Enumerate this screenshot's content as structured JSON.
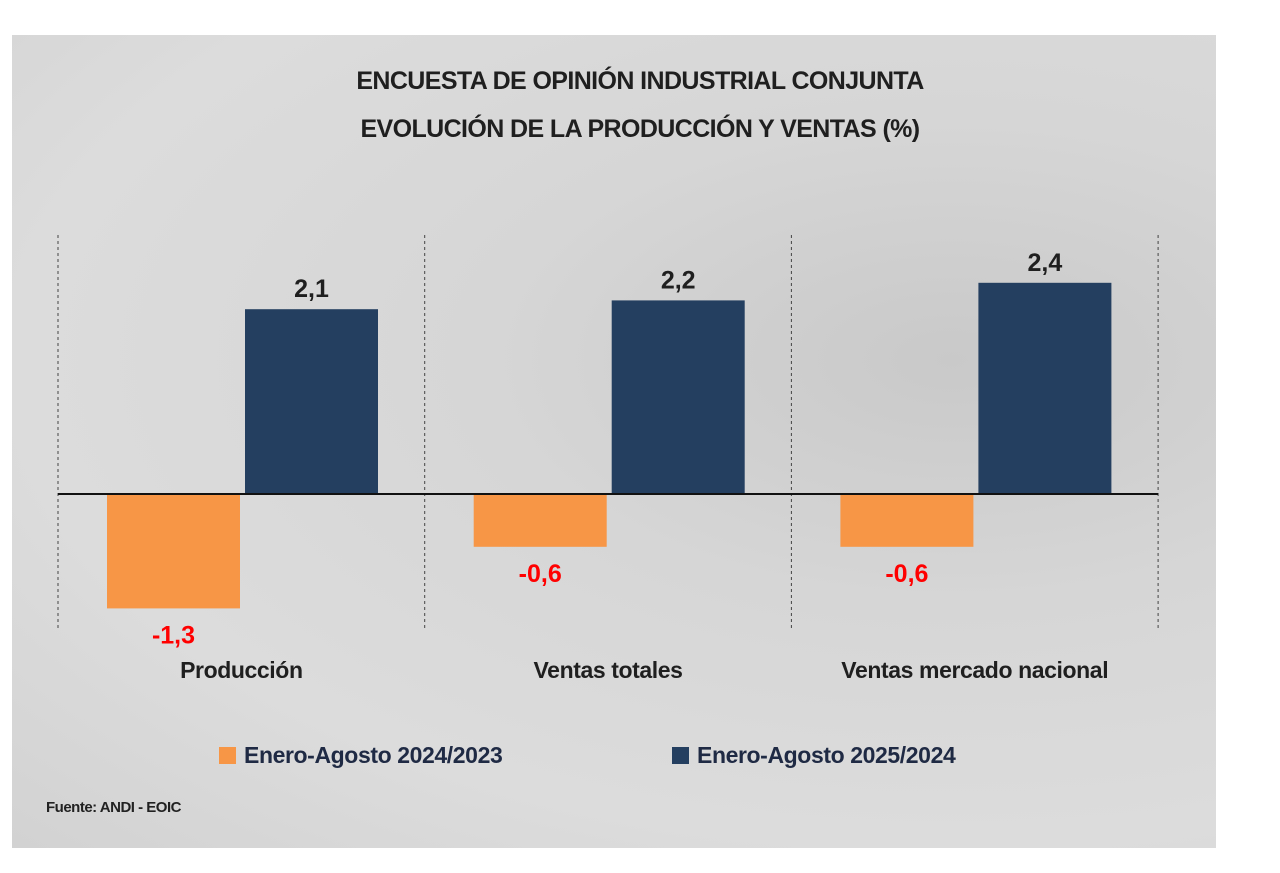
{
  "chart_data": {
    "type": "bar",
    "title": [
      "ENCUESTA DE OPINIÓN INDUSTRIAL CONJUNTA",
      "EVOLUCIÓN DE LA PRODUCCIÓN Y VENTAS (%)"
    ],
    "categories": [
      "Producción",
      "Ventas totales",
      "Ventas mercado nacional"
    ],
    "series": [
      {
        "name": "Enero-Agosto 2024/2023",
        "color": "#f79646",
        "values": [
          -1.3,
          -0.6,
          -0.6
        ],
        "labels": [
          "-1,3",
          "-0,6",
          "-0,6"
        ],
        "label_color": "#ff0000"
      },
      {
        "name": "Enero-Agosto 2025/2024",
        "color": "#243f60",
        "values": [
          2.1,
          2.2,
          2.4
        ],
        "labels": [
          "2,1",
          "2,2",
          "2,4"
        ],
        "label_color": "#1f1f1f"
      }
    ],
    "ylim": [
      -1.5,
      3.0
    ],
    "grid": false,
    "category_separators": "dashed vertical",
    "legend_position": "bottom",
    "source": "Fuente: ANDI - EOIC"
  }
}
